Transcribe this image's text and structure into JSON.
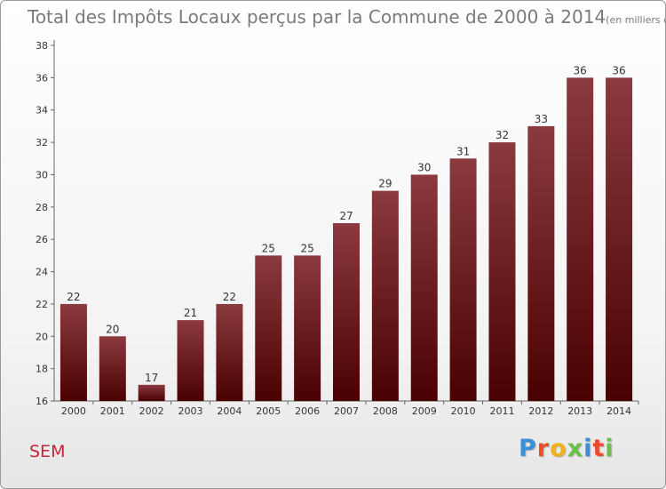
{
  "chart_data": {
    "type": "bar",
    "title": "Total des Impôts Locaux perçus par la Commune de 2000 à 2014",
    "unit_label": "(en milliers d'€)",
    "xlabel": "",
    "ylabel": "",
    "categories": [
      "2000",
      "2001",
      "2002",
      "2003",
      "2004",
      "2005",
      "2006",
      "2007",
      "2008",
      "2009",
      "2010",
      "2011",
      "2012",
      "2013",
      "2014"
    ],
    "values": [
      22,
      20,
      17,
      21,
      22,
      25,
      25,
      27,
      29,
      30,
      31,
      32,
      33,
      36,
      36
    ],
    "ylim": [
      16,
      38
    ],
    "yticks": [
      16,
      18,
      20,
      22,
      24,
      26,
      28,
      30,
      32,
      34,
      36,
      38
    ],
    "grid": false,
    "legend": "none",
    "bar_color_top": "#8b3a3f",
    "bar_color_bottom": "#4a0000"
  },
  "commune": {
    "name": "SEM",
    "color": "#c0283a"
  },
  "logo": {
    "letters": [
      {
        "char": "P",
        "color": "#3b8fd6"
      },
      {
        "char": "r",
        "color": "#e94e2a"
      },
      {
        "char": "o",
        "color": "#f2b01e"
      },
      {
        "char": "x",
        "color": "#6cc04a"
      },
      {
        "char": "i",
        "color": "#3b8fd6"
      },
      {
        "char": "t",
        "color": "#e94e2a"
      },
      {
        "char": "i",
        "color": "#6cc04a"
      }
    ]
  }
}
